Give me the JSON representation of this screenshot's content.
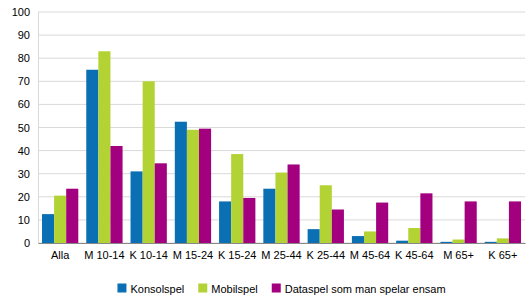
{
  "chart_data": {
    "type": "bar",
    "categories": [
      "Alla",
      "M 10-14",
      "K 10-14",
      "M 15-24",
      "K 15-24",
      "M 25-44",
      "K 25-44",
      "M 45-64",
      "K 45-64",
      "M 65+",
      "K 65+"
    ],
    "series": [
      {
        "name": "Konsolspel",
        "color": "#0b6fb3",
        "values": [
          12.5,
          75,
          31,
          52.5,
          18,
          23.5,
          6,
          3,
          1,
          0.5,
          0.5
        ]
      },
      {
        "name": "Mobilspel",
        "color": "#b3d334",
        "values": [
          20.5,
          83,
          70,
          49,
          38.5,
          30.5,
          25,
          5,
          6.5,
          1.5,
          2
        ]
      },
      {
        "name": "Dataspel som man spelar ensam",
        "color": "#a2007e",
        "values": [
          23.5,
          42,
          34.5,
          49.5,
          19.5,
          34,
          14.5,
          17.5,
          21.5,
          18,
          18
        ]
      }
    ],
    "ylim": [
      0,
      100
    ],
    "yticks": [
      0,
      10,
      20,
      30,
      40,
      50,
      60,
      70,
      80,
      90,
      100
    ],
    "grid": true,
    "legend": "bottom"
  }
}
